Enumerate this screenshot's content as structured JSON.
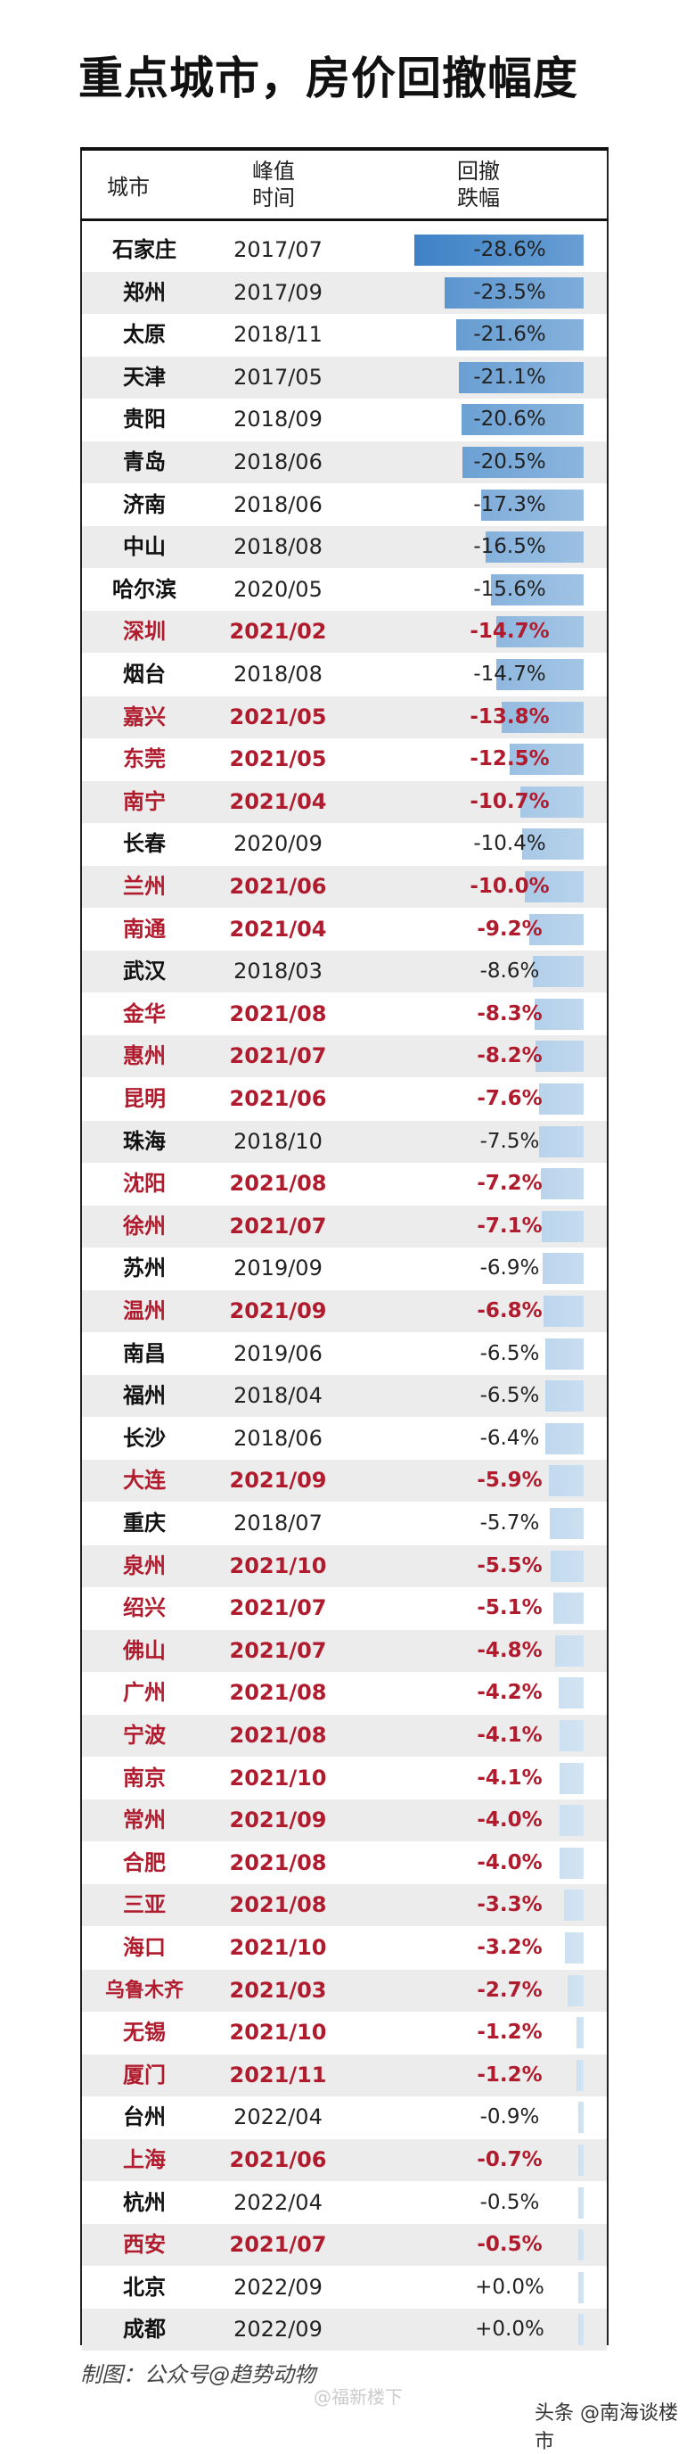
{
  "title": "重点城市，房价回撤幅度",
  "header": {
    "city": "城市",
    "peak": "峰值\n时间",
    "drop": "回撤\n跌幅"
  },
  "credit": "制图：公众号@趋势动物",
  "watermark_left": "@福新楼下",
  "watermark_right": "头条 @南海谈楼市",
  "colors": {
    "highlight": "#b01c2e",
    "bar_dark": "#3e82c6",
    "bar_light": "#e4f0f9"
  },
  "chart_data": {
    "type": "table",
    "columns": [
      "城市",
      "峰值时间",
      "回撤跌幅"
    ],
    "rows": [
      {
        "city": "石家庄",
        "peak": "2017/07",
        "drop": -28.6,
        "drop_label": "-28.6%",
        "highlight": false
      },
      {
        "city": "郑州",
        "peak": "2017/09",
        "drop": -23.5,
        "drop_label": "-23.5%",
        "highlight": false
      },
      {
        "city": "太原",
        "peak": "2018/11",
        "drop": -21.6,
        "drop_label": "-21.6%",
        "highlight": false
      },
      {
        "city": "天津",
        "peak": "2017/05",
        "drop": -21.1,
        "drop_label": "-21.1%",
        "highlight": false
      },
      {
        "city": "贵阳",
        "peak": "2018/09",
        "drop": -20.6,
        "drop_label": "-20.6%",
        "highlight": false
      },
      {
        "city": "青岛",
        "peak": "2018/06",
        "drop": -20.5,
        "drop_label": "-20.5%",
        "highlight": false
      },
      {
        "city": "济南",
        "peak": "2018/06",
        "drop": -17.3,
        "drop_label": "-17.3%",
        "highlight": false
      },
      {
        "city": "中山",
        "peak": "2018/08",
        "drop": -16.5,
        "drop_label": "-16.5%",
        "highlight": false
      },
      {
        "city": "哈尔滨",
        "peak": "2020/05",
        "drop": -15.6,
        "drop_label": "-15.6%",
        "highlight": false
      },
      {
        "city": "深圳",
        "peak": "2021/02",
        "drop": -14.7,
        "drop_label": "-14.7%",
        "highlight": true
      },
      {
        "city": "烟台",
        "peak": "2018/08",
        "drop": -14.7,
        "drop_label": "-14.7%",
        "highlight": false
      },
      {
        "city": "嘉兴",
        "peak": "2021/05",
        "drop": -13.8,
        "drop_label": "-13.8%",
        "highlight": true
      },
      {
        "city": "东莞",
        "peak": "2021/05",
        "drop": -12.5,
        "drop_label": "-12.5%",
        "highlight": true
      },
      {
        "city": "南宁",
        "peak": "2021/04",
        "drop": -10.7,
        "drop_label": "-10.7%",
        "highlight": true
      },
      {
        "city": "长春",
        "peak": "2020/09",
        "drop": -10.4,
        "drop_label": "-10.4%",
        "highlight": false
      },
      {
        "city": "兰州",
        "peak": "2021/06",
        "drop": -10.0,
        "drop_label": "-10.0%",
        "highlight": true
      },
      {
        "city": "南通",
        "peak": "2021/04",
        "drop": -9.2,
        "drop_label": "-9.2%",
        "highlight": true
      },
      {
        "city": "武汉",
        "peak": "2018/03",
        "drop": -8.6,
        "drop_label": "-8.6%",
        "highlight": false
      },
      {
        "city": "金华",
        "peak": "2021/08",
        "drop": -8.3,
        "drop_label": "-8.3%",
        "highlight": true
      },
      {
        "city": "惠州",
        "peak": "2021/07",
        "drop": -8.2,
        "drop_label": "-8.2%",
        "highlight": true
      },
      {
        "city": "昆明",
        "peak": "2021/06",
        "drop": -7.6,
        "drop_label": "-7.6%",
        "highlight": true
      },
      {
        "city": "珠海",
        "peak": "2018/10",
        "drop": -7.5,
        "drop_label": "-7.5%",
        "highlight": false
      },
      {
        "city": "沈阳",
        "peak": "2021/08",
        "drop": -7.2,
        "drop_label": "-7.2%",
        "highlight": true
      },
      {
        "city": "徐州",
        "peak": "2021/07",
        "drop": -7.1,
        "drop_label": "-7.1%",
        "highlight": true
      },
      {
        "city": "苏州",
        "peak": "2019/09",
        "drop": -6.9,
        "drop_label": "-6.9%",
        "highlight": false
      },
      {
        "city": "温州",
        "peak": "2021/09",
        "drop": -6.8,
        "drop_label": "-6.8%",
        "highlight": true
      },
      {
        "city": "南昌",
        "peak": "2019/06",
        "drop": -6.5,
        "drop_label": "-6.5%",
        "highlight": false
      },
      {
        "city": "福州",
        "peak": "2018/04",
        "drop": -6.5,
        "drop_label": "-6.5%",
        "highlight": false
      },
      {
        "city": "长沙",
        "peak": "2018/06",
        "drop": -6.4,
        "drop_label": "-6.4%",
        "highlight": false
      },
      {
        "city": "大连",
        "peak": "2021/09",
        "drop": -5.9,
        "drop_label": "-5.9%",
        "highlight": true
      },
      {
        "city": "重庆",
        "peak": "2018/07",
        "drop": -5.7,
        "drop_label": "-5.7%",
        "highlight": false
      },
      {
        "city": "泉州",
        "peak": "2021/10",
        "drop": -5.5,
        "drop_label": "-5.5%",
        "highlight": true
      },
      {
        "city": "绍兴",
        "peak": "2021/07",
        "drop": -5.1,
        "drop_label": "-5.1%",
        "highlight": true
      },
      {
        "city": "佛山",
        "peak": "2021/07",
        "drop": -4.8,
        "drop_label": "-4.8%",
        "highlight": true
      },
      {
        "city": "广州",
        "peak": "2021/08",
        "drop": -4.2,
        "drop_label": "-4.2%",
        "highlight": true
      },
      {
        "city": "宁波",
        "peak": "2021/08",
        "drop": -4.1,
        "drop_label": "-4.1%",
        "highlight": true
      },
      {
        "city": "南京",
        "peak": "2021/10",
        "drop": -4.1,
        "drop_label": "-4.1%",
        "highlight": true
      },
      {
        "city": "常州",
        "peak": "2021/09",
        "drop": -4.0,
        "drop_label": "-4.0%",
        "highlight": true
      },
      {
        "city": "合肥",
        "peak": "2021/08",
        "drop": -4.0,
        "drop_label": "-4.0%",
        "highlight": true
      },
      {
        "city": "三亚",
        "peak": "2021/08",
        "drop": -3.3,
        "drop_label": "-3.3%",
        "highlight": true
      },
      {
        "city": "海口",
        "peak": "2021/10",
        "drop": -3.2,
        "drop_label": "-3.2%",
        "highlight": true
      },
      {
        "city": "乌鲁木齐",
        "peak": "2021/03",
        "drop": -2.7,
        "drop_label": "-2.7%",
        "highlight": true
      },
      {
        "city": "无锡",
        "peak": "2021/10",
        "drop": -1.2,
        "drop_label": "-1.2%",
        "highlight": true
      },
      {
        "city": "厦门",
        "peak": "2021/11",
        "drop": -1.2,
        "drop_label": "-1.2%",
        "highlight": true
      },
      {
        "city": "台州",
        "peak": "2022/04",
        "drop": -0.9,
        "drop_label": "-0.9%",
        "highlight": false
      },
      {
        "city": "上海",
        "peak": "2021/06",
        "drop": -0.7,
        "drop_label": "-0.7%",
        "highlight": true
      },
      {
        "city": "杭州",
        "peak": "2022/04",
        "drop": -0.5,
        "drop_label": "-0.5%",
        "highlight": false
      },
      {
        "city": "西安",
        "peak": "2021/07",
        "drop": -0.5,
        "drop_label": "-0.5%",
        "highlight": true
      },
      {
        "city": "北京",
        "peak": "2022/09",
        "drop": 0.0,
        "drop_label": "+0.0%",
        "highlight": false
      },
      {
        "city": "成都",
        "peak": "2022/09",
        "drop": 0.0,
        "drop_label": "+0.0%",
        "highlight": false
      }
    ]
  }
}
